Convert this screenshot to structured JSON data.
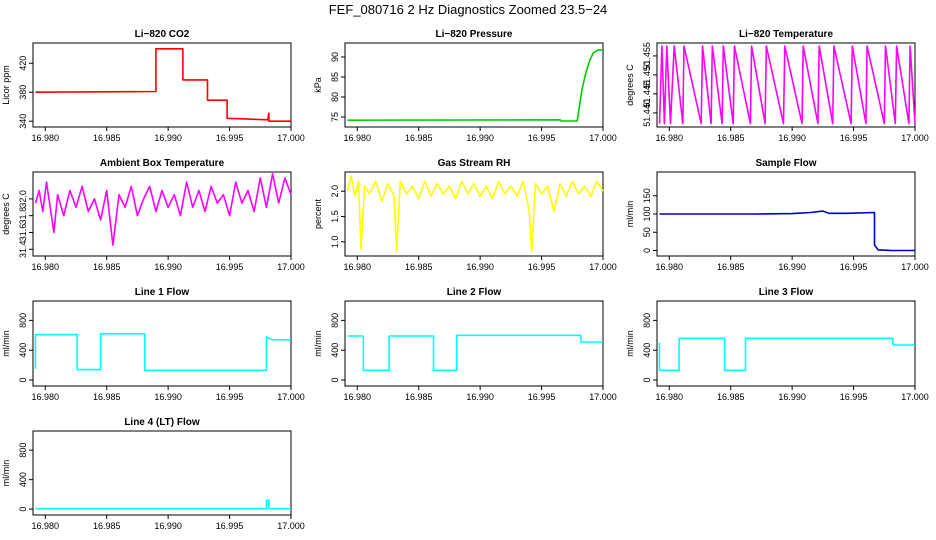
{
  "figure": {
    "title": "FEF_080716  2 Hz Diagnostics Zoomed 23.5−24"
  },
  "chart_data": [
    {
      "type": "line",
      "title": "Li−820 CO2",
      "ylabel": "Licor ppm",
      "color": "#ff0000",
      "xlim": [
        16.979,
        17.0
      ],
      "ylim": [
        332,
        448
      ],
      "xticks": [
        16.98,
        16.985,
        16.99,
        16.995,
        17.0
      ],
      "xtick_labels": [
        "16.980",
        "16.985",
        "16.990",
        "16.995",
        "17.000"
      ],
      "yticks": [
        340,
        380,
        420
      ],
      "ytick_labels": [
        "340",
        "380",
        "420"
      ],
      "series": [
        {
          "x": [
            16.9792,
            16.989,
            16.989,
            16.9912,
            16.9912,
            16.9932,
            16.9932,
            16.9948,
            16.9948,
            16.9981,
            16.9982,
            16.9982,
            16.9984,
            17.0
          ],
          "y": [
            380,
            381,
            440,
            440,
            397,
            397,
            369,
            369,
            344,
            342,
            351,
            340,
            340,
            340
          ]
        }
      ]
    },
    {
      "type": "line",
      "title": "Li−820 Pressure",
      "ylabel": "kPa",
      "color": "#00cc00",
      "xlim": [
        16.979,
        17.0
      ],
      "ylim": [
        72.5,
        93.5
      ],
      "xticks": [
        16.98,
        16.985,
        16.99,
        16.995,
        17.0
      ],
      "xtick_labels": [
        "16.980",
        "16.985",
        "16.990",
        "16.995",
        "17.000"
      ],
      "yticks": [
        75,
        80,
        85,
        90
      ],
      "ytick_labels": [
        "75",
        "80",
        "85",
        "90"
      ],
      "series": [
        {
          "x": [
            16.9792,
            16.9965,
            16.9966,
            16.9979,
            16.998,
            16.9983,
            16.9986,
            16.9989,
            16.9992,
            16.9996,
            17.0
          ],
          "y": [
            74.2,
            74.3,
            74.0,
            74.0,
            76.0,
            82.0,
            86.0,
            89.0,
            91.0,
            91.8,
            91.8
          ]
        }
      ]
    },
    {
      "type": "line",
      "title": "Li−820 Temperature",
      "ylabel": "degrees C",
      "color": "#ff00ff",
      "xlim": [
        16.979,
        17.0
      ],
      "ylim": [
        51.4363,
        51.4584
      ],
      "xticks": [
        16.98,
        16.985,
        16.99,
        16.995,
        17.0
      ],
      "xtick_labels": [
        "16.980",
        "16.985",
        "16.990",
        "16.995",
        "17.000"
      ],
      "yticks": [
        51.44,
        51.445,
        51.45,
        51.455
      ],
      "ytick_labels": [
        "51.440",
        "51.445",
        "51.450",
        "51.455"
      ],
      "series": [
        {
          "x": [
            16.9792,
            16.9794,
            16.9796,
            16.9798,
            16.9801,
            16.9804,
            16.9811,
            16.9812,
            16.9826,
            16.9827,
            16.9834,
            16.9835,
            16.9843,
            16.9844,
            16.9852,
            16.9853,
            16.9866,
            16.9867,
            16.9878,
            16.9879,
            16.9893,
            16.9894,
            16.9908,
            16.9909,
            16.9921,
            16.9922,
            16.9933,
            16.9934,
            16.9948,
            16.9949,
            16.996,
            16.9961,
            16.9975,
            16.9976,
            16.9984,
            16.9985,
            16.9995,
            16.9996,
            17.0
          ],
          "y": [
            51.4372,
            51.4576,
            51.4372,
            51.4576,
            51.4372,
            51.4576,
            51.4372,
            51.4576,
            51.4372,
            51.4576,
            51.4372,
            51.4576,
            51.4372,
            51.4576,
            51.4372,
            51.4576,
            51.4372,
            51.4576,
            51.4372,
            51.4576,
            51.4372,
            51.4576,
            51.4372,
            51.4576,
            51.4372,
            51.4576,
            51.4372,
            51.4576,
            51.4372,
            51.4576,
            51.4372,
            51.4576,
            51.4372,
            51.4576,
            51.4372,
            51.4576,
            51.4372,
            51.4576,
            51.4372
          ]
        }
      ]
    },
    {
      "type": "line",
      "title": "Ambient Box Temperature",
      "ylabel": "degrees C",
      "color": "#ff00ff",
      "xlim": [
        16.979,
        17.0
      ],
      "ylim": [
        31.32,
        32.32
      ],
      "xticks": [
        16.98,
        16.985,
        16.99,
        16.995,
        17.0
      ],
      "xtick_labels": [
        "16.980",
        "16.985",
        "16.990",
        "16.995",
        "17.000"
      ],
      "yticks": [
        31.4,
        31.6,
        31.8,
        32.0
      ],
      "ytick_labels": [
        "31.4",
        "31.6",
        "31.8",
        "32.0"
      ],
      "series": [
        {
          "x": [
            16.9792,
            16.9795,
            16.9798,
            16.9801,
            16.9804,
            16.9807,
            16.981,
            16.9815,
            16.982,
            16.9825,
            16.983,
            16.9835,
            16.984,
            16.9845,
            16.985,
            16.9855,
            16.986,
            16.9865,
            16.987,
            16.9875,
            16.988,
            16.9885,
            16.989,
            16.9895,
            16.99,
            16.9905,
            16.991,
            16.9915,
            16.992,
            16.9925,
            16.993,
            16.9935,
            16.994,
            16.9945,
            16.995,
            16.9955,
            16.996,
            16.9965,
            16.997,
            16.9975,
            16.998,
            16.9985,
            16.999,
            16.9995,
            17.0
          ],
          "y": [
            31.95,
            32.1,
            31.85,
            32.2,
            31.9,
            31.6,
            32.05,
            31.8,
            32.1,
            31.9,
            32.15,
            31.85,
            32.0,
            31.75,
            32.1,
            31.45,
            32.05,
            31.9,
            32.15,
            31.8,
            32.0,
            32.15,
            31.85,
            32.1,
            31.9,
            32.05,
            31.8,
            32.2,
            31.9,
            32.1,
            31.85,
            32.15,
            31.95,
            32.05,
            31.8,
            32.2,
            31.95,
            32.1,
            31.85,
            32.25,
            31.9,
            32.3,
            31.95,
            32.25,
            32.05
          ]
        }
      ]
    },
    {
      "type": "line",
      "title": "Gas Stream RH",
      "ylabel": "percent",
      "color": "#ffff00",
      "xlim": [
        16.979,
        17.0
      ],
      "ylim": [
        0.72,
        2.38
      ],
      "xticks": [
        16.98,
        16.985,
        16.99,
        16.995,
        17.0
      ],
      "xtick_labels": [
        "16.980",
        "16.985",
        "16.990",
        "16.995",
        "17.000"
      ],
      "yticks": [
        1.0,
        1.5,
        2.0
      ],
      "ytick_labels": [
        "1.0",
        "1.5",
        "2.0"
      ],
      "series": [
        {
          "x": [
            16.9792,
            16.9795,
            16.9798,
            16.9801,
            16.9803,
            16.9806,
            16.981,
            16.9815,
            16.982,
            16.9825,
            16.983,
            16.9832,
            16.9835,
            16.984,
            16.9845,
            16.985,
            16.9855,
            16.986,
            16.9865,
            16.987,
            16.9875,
            16.988,
            16.9885,
            16.989,
            16.9895,
            16.99,
            16.9905,
            16.991,
            16.9915,
            16.992,
            16.9925,
            16.993,
            16.9935,
            16.994,
            16.9942,
            16.9945,
            16.995,
            16.9955,
            16.996,
            16.9965,
            16.997,
            16.9975,
            16.998,
            16.9985,
            16.999,
            16.9995,
            17.0
          ],
          "y": [
            2.0,
            2.3,
            1.9,
            2.2,
            0.85,
            2.1,
            1.95,
            2.2,
            1.8,
            2.15,
            1.9,
            0.8,
            2.2,
            1.95,
            2.1,
            1.85,
            2.2,
            1.9,
            2.15,
            1.95,
            2.1,
            1.85,
            2.2,
            1.95,
            2.15,
            1.9,
            2.1,
            1.85,
            2.2,
            1.95,
            2.1,
            1.9,
            2.2,
            1.6,
            0.8,
            2.15,
            1.95,
            2.1,
            1.6,
            2.15,
            1.9,
            2.2,
            1.95,
            2.1,
            1.9,
            2.2,
            2.0
          ]
        }
      ]
    },
    {
      "type": "line",
      "title": "Sample Flow",
      "ylabel": "ml/min",
      "color": "#0000cc",
      "xlim": [
        16.979,
        17.0
      ],
      "ylim": [
        -15,
        215
      ],
      "xticks": [
        16.98,
        16.985,
        16.99,
        16.995,
        17.0
      ],
      "xtick_labels": [
        "16.980",
        "16.985",
        "16.990",
        "16.995",
        "17.000"
      ],
      "yticks": [
        0,
        50,
        100,
        150
      ],
      "ytick_labels": [
        "0",
        "50",
        "100",
        "150"
      ],
      "series": [
        {
          "x": [
            16.9792,
            16.987,
            16.99,
            16.9915,
            16.9925,
            16.993,
            16.9945,
            16.9967,
            16.9967,
            16.997,
            16.998,
            17.0
          ],
          "y": [
            100,
            100,
            101,
            104,
            108,
            102,
            102,
            104,
            15,
            2,
            0,
            0
          ]
        }
      ]
    },
    {
      "type": "line",
      "title": "Line 1 Flow",
      "ylabel": "ml/min",
      "color": "#00ffff",
      "xlim": [
        16.979,
        17.0
      ],
      "ylim": [
        -80,
        1060
      ],
      "xticks": [
        16.98,
        16.985,
        16.99,
        16.995,
        17.0
      ],
      "xtick_labels": [
        "16.980",
        "16.985",
        "16.990",
        "16.995",
        "17.000"
      ],
      "yticks": [
        0,
        400,
        800
      ],
      "ytick_labels": [
        "0",
        "400",
        "800"
      ],
      "series": [
        {
          "x": [
            16.9792,
            16.9792,
            16.9826,
            16.9826,
            16.9845,
            16.9845,
            16.9881,
            16.9881,
            16.998,
            16.998,
            16.9985,
            17.0
          ],
          "y": [
            150,
            610,
            610,
            140,
            140,
            620,
            620,
            130,
            130,
            580,
            540,
            540
          ]
        }
      ]
    },
    {
      "type": "line",
      "title": "Line 2 Flow",
      "ylabel": "ml/min",
      "color": "#00ffff",
      "xlim": [
        16.979,
        17.0
      ],
      "ylim": [
        -80,
        1060
      ],
      "xticks": [
        16.98,
        16.985,
        16.99,
        16.995,
        17.0
      ],
      "xtick_labels": [
        "16.980",
        "16.985",
        "16.990",
        "16.995",
        "17.000"
      ],
      "yticks": [
        0,
        400,
        800
      ],
      "ytick_labels": [
        "0",
        "400",
        "800"
      ],
      "series": [
        {
          "x": [
            16.9792,
            16.9805,
            16.9805,
            16.9826,
            16.9826,
            16.9862,
            16.9862,
            16.9881,
            16.9881,
            16.9982,
            16.9982,
            17.0
          ],
          "y": [
            590,
            590,
            130,
            130,
            590,
            590,
            130,
            130,
            600,
            600,
            510,
            510
          ]
        }
      ]
    },
    {
      "type": "line",
      "title": "Line 3 Flow",
      "ylabel": "ml/min",
      "color": "#00ffff",
      "xlim": [
        16.979,
        17.0
      ],
      "ylim": [
        -80,
        1060
      ],
      "xticks": [
        16.98,
        16.985,
        16.99,
        16.995,
        17.0
      ],
      "xtick_labels": [
        "16.980",
        "16.985",
        "16.990",
        "16.995",
        "17.000"
      ],
      "yticks": [
        0,
        400,
        800
      ],
      "ytick_labels": [
        "0",
        "400",
        "800"
      ],
      "series": [
        {
          "x": [
            16.9792,
            16.9792,
            16.9793,
            16.9808,
            16.9808,
            16.9845,
            16.9845,
            16.9862,
            16.9862,
            16.9982,
            16.9982,
            17.0
          ],
          "y": [
            500,
            130,
            130,
            130,
            560,
            560,
            130,
            130,
            560,
            560,
            470,
            470
          ]
        }
      ]
    },
    {
      "type": "line",
      "title": "Line 4 (LT) Flow",
      "ylabel": "ml/min",
      "color": "#00ffff",
      "xlim": [
        16.979,
        17.0
      ],
      "ylim": [
        -80,
        1060
      ],
      "xticks": [
        16.98,
        16.985,
        16.99,
        16.995,
        17.0
      ],
      "xtick_labels": [
        "16.980",
        "16.985",
        "16.990",
        "16.995",
        "17.000"
      ],
      "yticks": [
        0,
        400,
        800
      ],
      "ytick_labels": [
        "0",
        "400",
        "800"
      ],
      "series": [
        {
          "x": [
            16.9792,
            16.998,
            16.998,
            16.9982,
            16.9982,
            17.0
          ],
          "y": [
            5,
            5,
            120,
            120,
            5,
            5
          ]
        }
      ]
    }
  ]
}
